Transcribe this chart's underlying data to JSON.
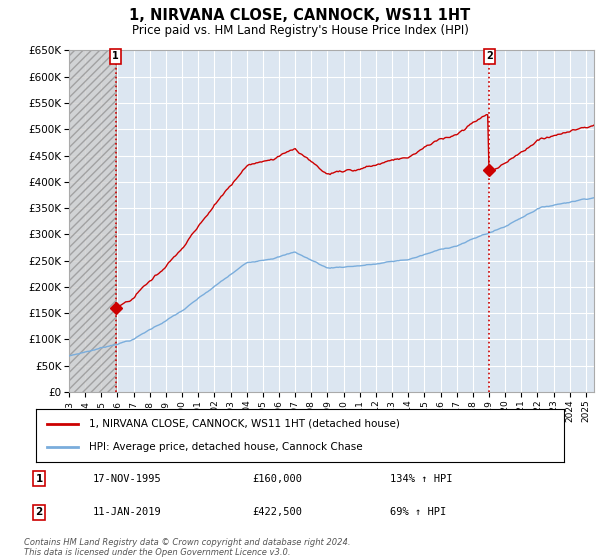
{
  "title": "1, NIRVANA CLOSE, CANNOCK, WS11 1HT",
  "subtitle": "Price paid vs. HM Land Registry's House Price Index (HPI)",
  "sale1_label": "17-NOV-1995",
  "sale1_price": 160000,
  "sale1_year": 1995.88,
  "sale1_pct": "134% ↑ HPI",
  "sale2_label": "11-JAN-2019",
  "sale2_price": 422500,
  "sale2_year": 2019.03,
  "sale2_pct": "69% ↑ HPI",
  "legend1": "1, NIRVANA CLOSE, CANNOCK, WS11 1HT (detached house)",
  "legend2": "HPI: Average price, detached house, Cannock Chase",
  "footer": "Contains HM Land Registry data © Crown copyright and database right 2024.\nThis data is licensed under the Open Government Licence v3.0.",
  "ylim": [
    0,
    650000
  ],
  "xlim_left": 1993.0,
  "xlim_right": 2025.5,
  "hpi_color": "#cc0000",
  "avg_color": "#7aaddc",
  "background_color": "#dce6f1",
  "grid_color": "#ffffff",
  "marker_box_color": "#cc0000",
  "hatch_region_end": 1995.88
}
